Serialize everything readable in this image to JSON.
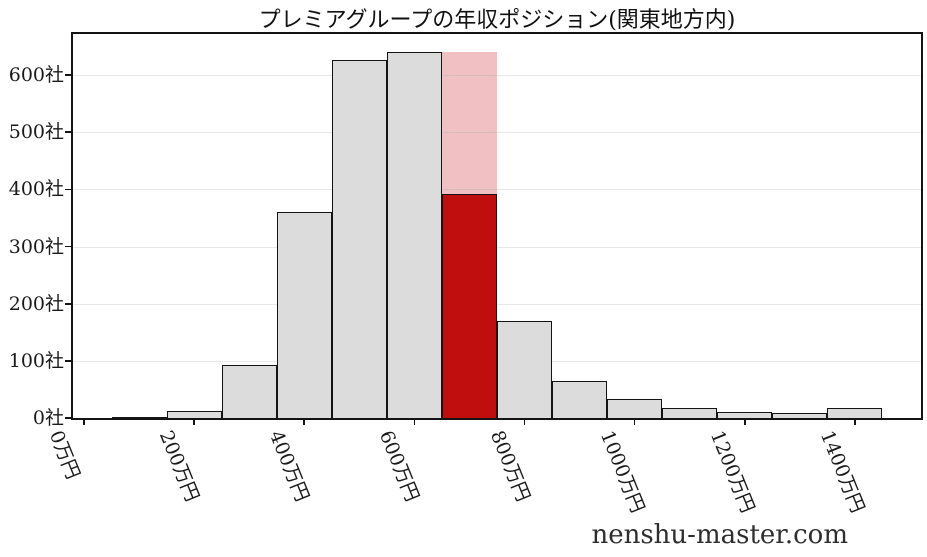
{
  "chart_data": {
    "type": "bar",
    "subtype": "histogram",
    "title": "プレミアグループの年収ポジション(関東地方内)",
    "watermark": "nenshu-master.com",
    "xlabel": "",
    "ylabel": "",
    "x_unit": "万円",
    "y_unit": "社",
    "xlim": [
      -20,
      1520
    ],
    "ylim": [
      0,
      672
    ],
    "grid": "horizontal",
    "x_tick_values": [
      0,
      200,
      400,
      600,
      800,
      1000,
      1200,
      1400
    ],
    "x_tick_labels": [
      "0万円",
      "200万円",
      "400万円",
      "600万円",
      "800万円",
      "1000万円",
      "1200万円",
      "1400万円"
    ],
    "y_tick_values": [
      0,
      100,
      200,
      300,
      400,
      500,
      600
    ],
    "y_tick_labels": [
      "0社",
      "100社",
      "200社",
      "300社",
      "400社",
      "500社",
      "600社"
    ],
    "bins": [
      {
        "x0": 50,
        "x1": 150,
        "count": 2
      },
      {
        "x0": 150,
        "x1": 250,
        "count": 12
      },
      {
        "x0": 250,
        "x1": 350,
        "count": 92
      },
      {
        "x0": 350,
        "x1": 450,
        "count": 360
      },
      {
        "x0": 450,
        "x1": 550,
        "count": 627
      },
      {
        "x0": 550,
        "x1": 650,
        "count": 641
      },
      {
        "x0": 650,
        "x1": 750,
        "count": 641,
        "highlight": true
      },
      {
        "x0": 750,
        "x1": 850,
        "count": 170
      },
      {
        "x0": 850,
        "x1": 950,
        "count": 64
      },
      {
        "x0": 950,
        "x1": 1050,
        "count": 33
      },
      {
        "x0": 1050,
        "x1": 1150,
        "count": 18
      },
      {
        "x0": 1150,
        "x1": 1250,
        "count": 10
      },
      {
        "x0": 1250,
        "x1": 1350,
        "count": 8
      },
      {
        "x0": 1350,
        "x1": 1450,
        "count": 18
      }
    ],
    "highlight": {
      "bin_x0": 650,
      "bin_x1": 750,
      "pink_total_count": 641,
      "red_filled_count": 392
    }
  },
  "colors": {
    "background": "#ffffff",
    "bar_fill": "#dcdcdc",
    "bar_edge": "#141414",
    "highlight_pink": "#f2cbcd",
    "highlight_pink_rgba": "rgba(213,80,87,0.36)",
    "highlight_red": "#c00d0d",
    "gridline": "#e8e8e8",
    "text": "#1a1a1a"
  }
}
